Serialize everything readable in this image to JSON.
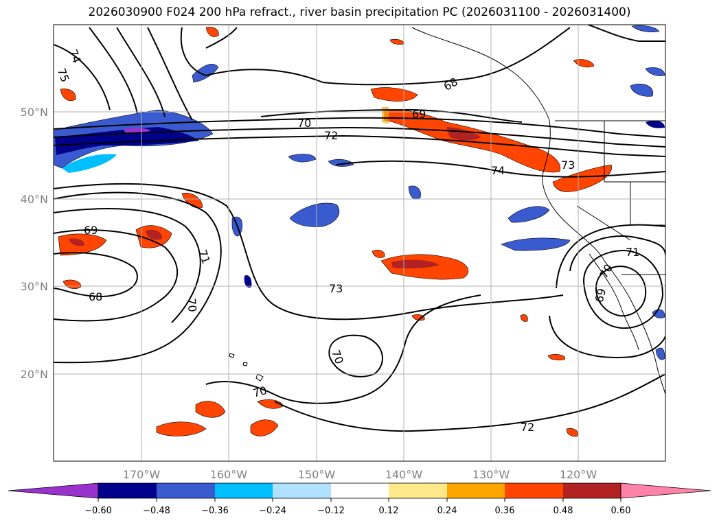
{
  "title": "2026030900 F024 200 hPa refract., river basin precipitation PC (2026031100 - 2026031400)",
  "latitude_labels": [
    "50°N",
    "40°N",
    "30°N",
    "20°N"
  ],
  "longitude_labels": [
    "170°W",
    "160°W",
    "150°W",
    "140°W",
    "130°W",
    "120°W"
  ],
  "contour_labels": [
    "75",
    "74",
    "69",
    "68",
    "70",
    "71",
    "70",
    "73",
    "70",
    "70",
    "72",
    "69",
    "70",
    "71",
    "72",
    "74",
    "73",
    "68",
    "69"
  ],
  "colorbar": {
    "ticks": [
      "−0.60",
      "−0.48",
      "−0.36",
      "−0.24",
      "−0.12",
      "0.12",
      "0.24",
      "0.36",
      "0.48",
      "0.60"
    ],
    "colors": [
      "#9932cc",
      "#00008b",
      "#3a5bd0",
      "#00bfff",
      "#b0e2ff",
      "#ffffff",
      "#ffe98a",
      "#ffa500",
      "#ff4500",
      "#b22222",
      "#ff82a9"
    ]
  }
}
